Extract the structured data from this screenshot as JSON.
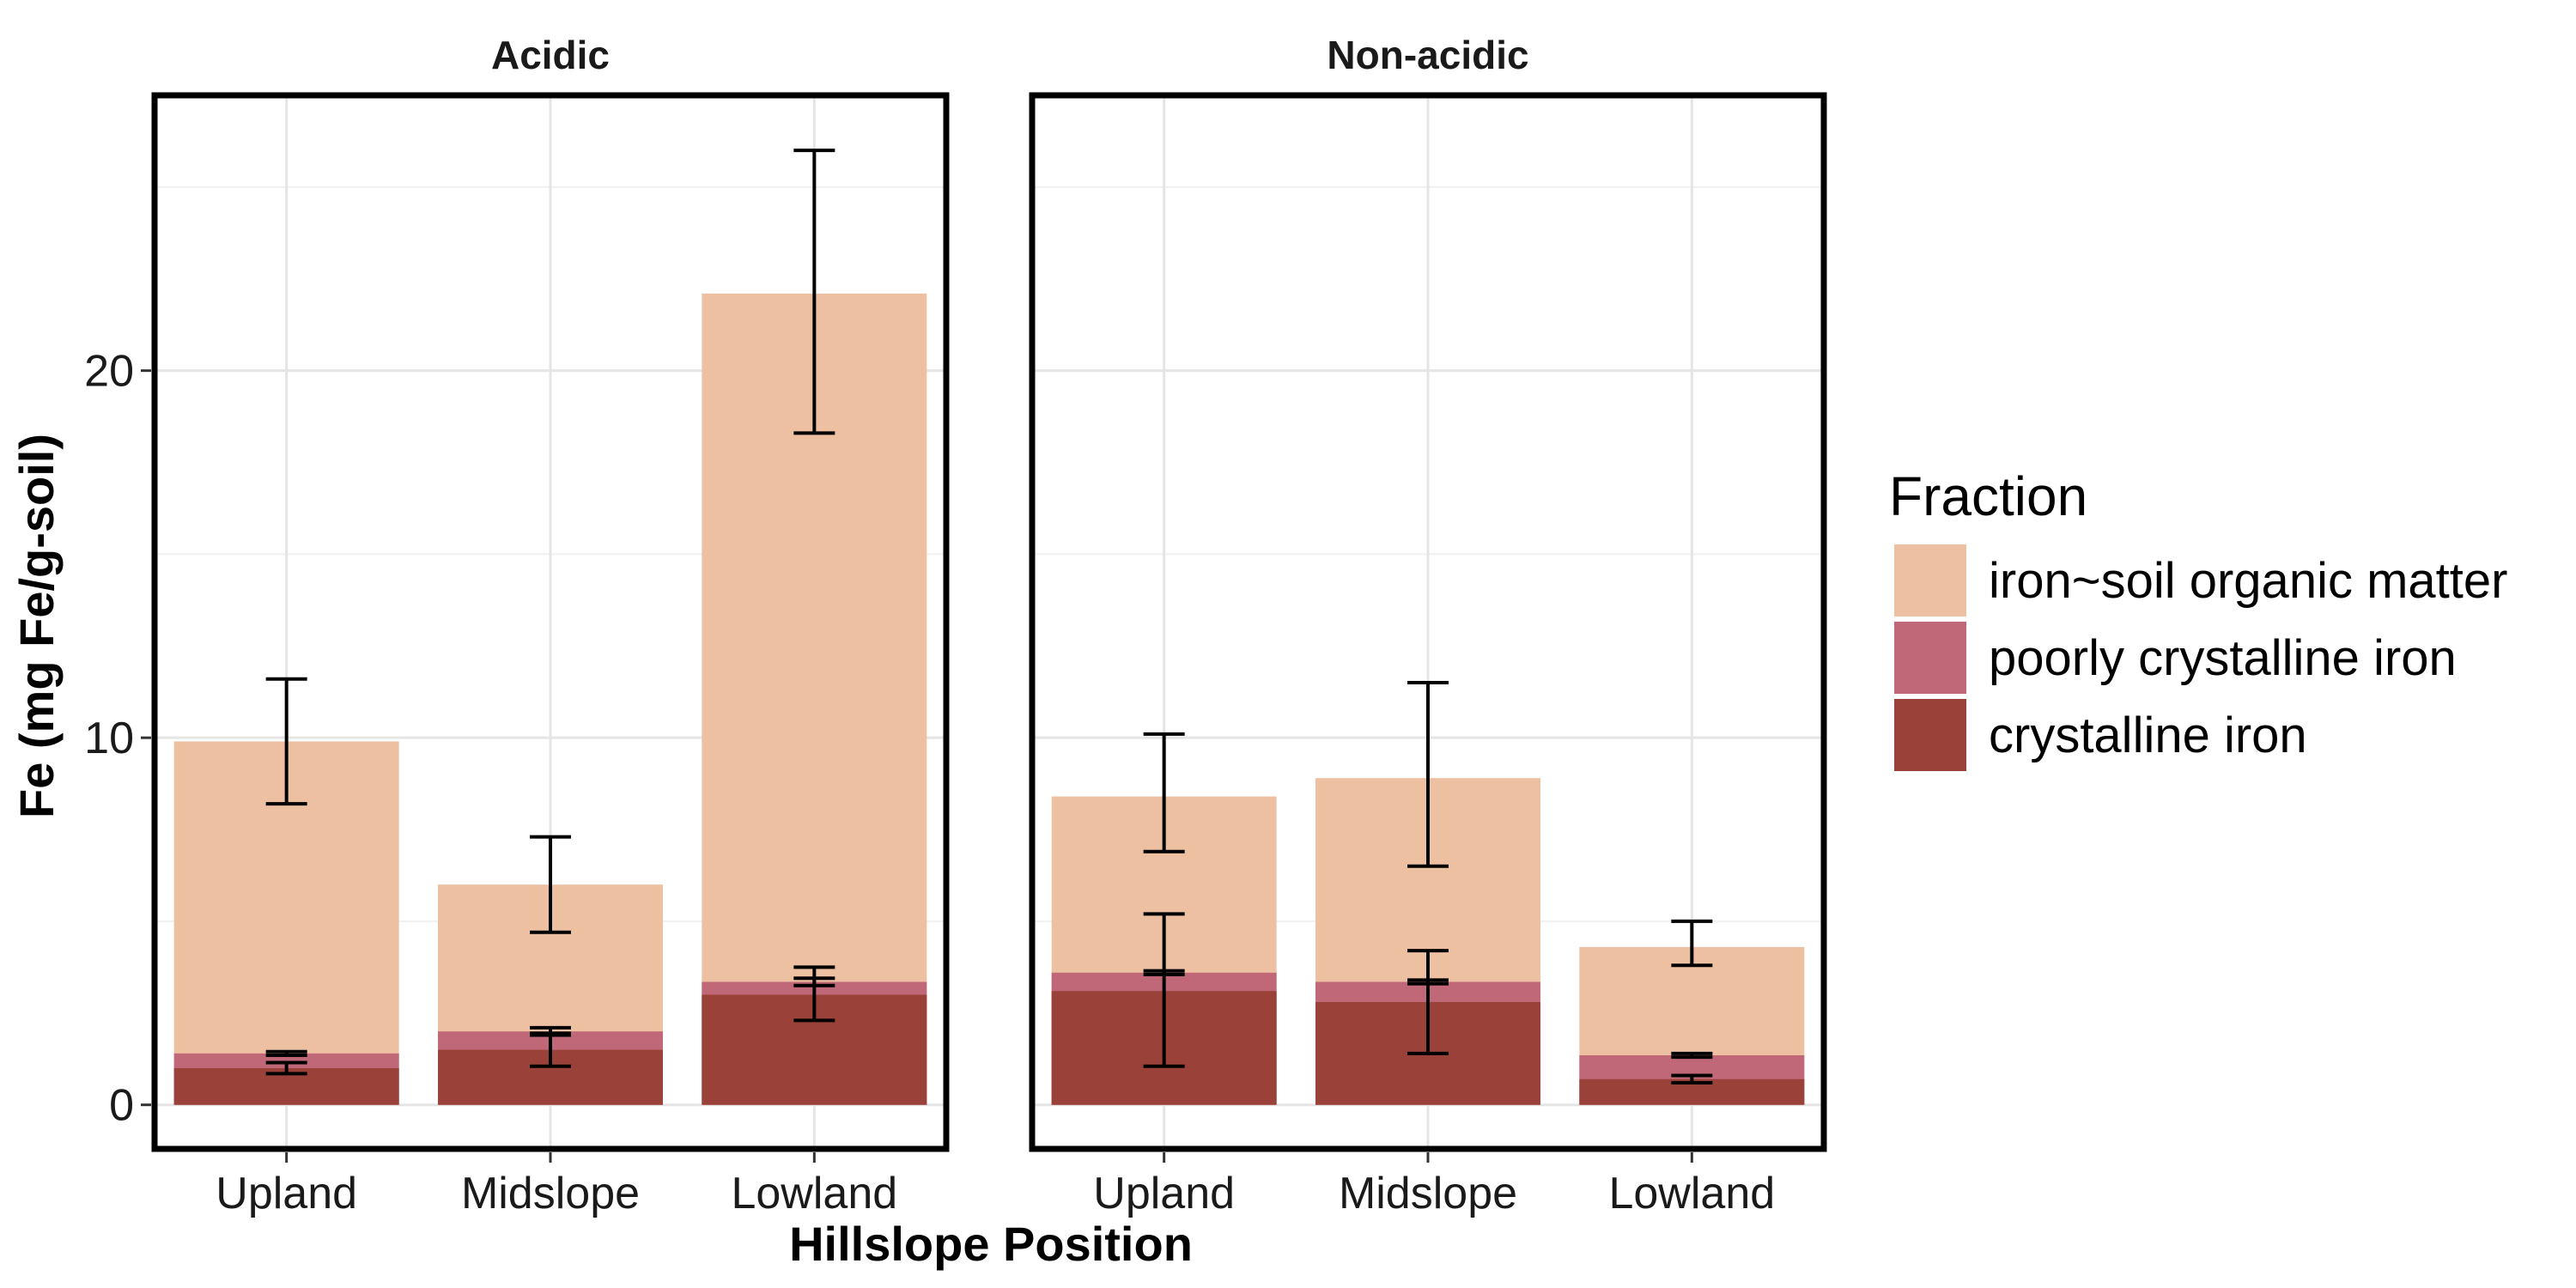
{
  "chart_data": {
    "type": "bar",
    "stacking": "overlay",
    "facets": [
      "Acidic",
      "Non-acidic"
    ],
    "categories": [
      "Upland",
      "Midslope",
      "Lowland"
    ],
    "xlabel": "Hillslope Position",
    "ylabel": "Fe (mg Fe/g-soil)",
    "ylim": [
      -1.2,
      27.5
    ],
    "yticks": [
      0,
      10,
      20
    ],
    "grid": true,
    "legend_position": "right",
    "legend_title": "Fraction",
    "series": [
      {
        "name": "iron~soil organic matter",
        "color": "#EDC0A2",
        "values": {
          "Acidic": [
            9.9,
            6.0,
            22.1
          ],
          "Non-acidic": [
            8.4,
            8.9,
            4.3
          ]
        },
        "error": {
          "Acidic": [
            [
              8.2,
              11.6
            ],
            [
              4.7,
              7.3
            ],
            [
              18.3,
              26.0
            ]
          ],
          "Non-acidic": [
            [
              6.9,
              10.1
            ],
            [
              6.5,
              11.5
            ],
            [
              3.8,
              5.0
            ]
          ]
        }
      },
      {
        "name": "poorly crystalline iron",
        "color": "#C06877",
        "values": {
          "Acidic": [
            1.4,
            2.0,
            3.35
          ],
          "Non-acidic": [
            3.6,
            3.35,
            1.35
          ]
        },
        "error": {
          "Acidic": [
            [
              1.35,
              1.45
            ],
            [
              1.9,
              2.1
            ],
            [
              3.25,
              3.45
            ]
          ],
          "Non-acidic": [
            [
              3.55,
              3.65
            ],
            [
              3.3,
              3.4
            ],
            [
              1.3,
              1.4
            ]
          ]
        }
      },
      {
        "name": "crystalline iron",
        "color": "#9A4239",
        "values": {
          "Acidic": [
            1.0,
            1.5,
            3.0
          ],
          "Non-acidic": [
            3.1,
            2.8,
            0.7
          ]
        },
        "error": {
          "Acidic": [
            [
              0.85,
              1.15
            ],
            [
              1.05,
              1.95
            ],
            [
              2.3,
              3.75
            ]
          ],
          "Non-acidic": [
            [
              1.05,
              5.2
            ],
            [
              1.4,
              4.2
            ],
            [
              0.6,
              0.8
            ]
          ]
        }
      }
    ]
  }
}
